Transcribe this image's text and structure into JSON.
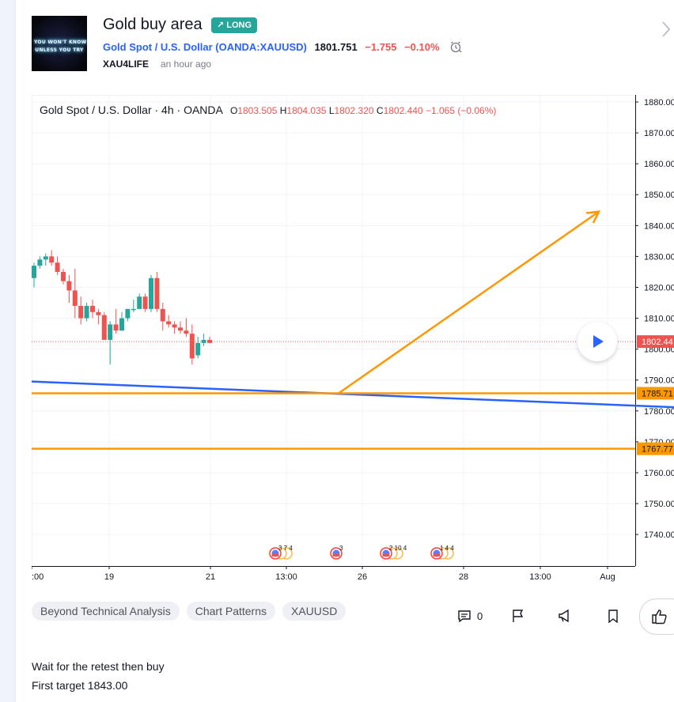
{
  "idea": {
    "title": "Gold buy area",
    "badge": "LONG",
    "symbol_name": "Gold Spot / U.S. Dollar",
    "symbol_code": "OANDA:XAUUSD",
    "price": "1801.751",
    "change": "−1.755",
    "change_pct": "−0.10%",
    "author": "XAU4LIFE",
    "time_ago": "an hour ago",
    "thumbnail_text": [
      "YOU WON'T KNOW",
      "UNLESS YOU TRY"
    ]
  },
  "chart_header": {
    "title": "Gold Spot / U.S. Dollar · 4h · OANDA",
    "o_label": "O",
    "o": "1803.505",
    "h_label": "H",
    "h": "1804.035",
    "l_label": "L",
    "l": "1802.320",
    "c_label": "C",
    "c": "1802.440",
    "change": "−1.065 (−0.06%)"
  },
  "chart_data": {
    "type": "candlestick",
    "ylim": [
      1735,
      1882
    ],
    "y_ticks": [
      1740,
      1750,
      1760,
      1770,
      1780,
      1790,
      1800,
      1810,
      1820,
      1830,
      1840,
      1850,
      1860,
      1870,
      1880
    ],
    "y_tick_labels": [
      "1740.00",
      "1750.00",
      "1760.00",
      "1770.00",
      "1780.00",
      "1790.00",
      "1800.00",
      "1810.00",
      "1820.00",
      "1830.00",
      "1840.00",
      "1850.00",
      "1860.00",
      "1870.00",
      "1880.00"
    ],
    "x_tick_labels": [
      ":00",
      "19",
      "21",
      "13:00",
      "26",
      "28",
      "13:00",
      "Aug"
    ],
    "candles": [
      {
        "o": 1823,
        "h": 1828,
        "l": 1820,
        "c": 1827
      },
      {
        "o": 1827,
        "h": 1830,
        "l": 1826,
        "c": 1829
      },
      {
        "o": 1829,
        "h": 1831,
        "l": 1827,
        "c": 1830
      },
      {
        "o": 1830,
        "h": 1832,
        "l": 1827,
        "c": 1828
      },
      {
        "o": 1828,
        "h": 1830,
        "l": 1824,
        "c": 1825
      },
      {
        "o": 1825,
        "h": 1826,
        "l": 1821,
        "c": 1822
      },
      {
        "o": 1822,
        "h": 1824,
        "l": 1815,
        "c": 1819
      },
      {
        "o": 1819,
        "h": 1826,
        "l": 1810,
        "c": 1814
      },
      {
        "o": 1814,
        "h": 1817,
        "l": 1808,
        "c": 1810
      },
      {
        "o": 1810,
        "h": 1815,
        "l": 1809,
        "c": 1814
      },
      {
        "o": 1814,
        "h": 1816,
        "l": 1810,
        "c": 1812
      },
      {
        "o": 1812,
        "h": 1813,
        "l": 1808,
        "c": 1811
      },
      {
        "o": 1811,
        "h": 1812,
        "l": 1803,
        "c": 1803
      },
      {
        "o": 1803,
        "h": 1809,
        "l": 1795,
        "c": 1808
      },
      {
        "o": 1808,
        "h": 1813,
        "l": 1805,
        "c": 1806
      },
      {
        "o": 1806,
        "h": 1812,
        "l": 1806,
        "c": 1810
      },
      {
        "o": 1810,
        "h": 1813,
        "l": 1809,
        "c": 1813
      },
      {
        "o": 1813,
        "h": 1816,
        "l": 1812,
        "c": 1813
      },
      {
        "o": 1813,
        "h": 1818,
        "l": 1813,
        "c": 1817
      },
      {
        "o": 1817,
        "h": 1818,
        "l": 1812,
        "c": 1813
      },
      {
        "o": 1813,
        "h": 1824,
        "l": 1812,
        "c": 1823
      },
      {
        "o": 1823,
        "h": 1825,
        "l": 1812,
        "c": 1813
      },
      {
        "o": 1813,
        "h": 1815,
        "l": 1806,
        "c": 1809
      },
      {
        "o": 1809,
        "h": 1811,
        "l": 1807,
        "c": 1808
      },
      {
        "o": 1808,
        "h": 1809,
        "l": 1805,
        "c": 1807
      },
      {
        "o": 1807,
        "h": 1809,
        "l": 1805,
        "c": 1806
      },
      {
        "o": 1806,
        "h": 1810,
        "l": 1804,
        "c": 1805
      },
      {
        "o": 1805,
        "h": 1808,
        "l": 1795,
        "c": 1797
      },
      {
        "o": 1798,
        "h": 1804,
        "l": 1797,
        "c": 1802
      },
      {
        "o": 1802,
        "h": 1805,
        "l": 1801,
        "c": 1803
      },
      {
        "o": 1803,
        "h": 1804,
        "l": 1802,
        "c": 1802
      }
    ],
    "last_price": 1802.44,
    "last_price_label": "1802.44",
    "horizontal_lines": [
      {
        "value": 1785.71,
        "label": "1785.71",
        "color": "#ff9800"
      },
      {
        "value": 1767.77,
        "label": "1767.77",
        "color": "#ff9800"
      }
    ],
    "trendline": {
      "from": 1789.5,
      "to": 1781.2,
      "color": "#2962ff"
    },
    "arrow": {
      "from_price": 1785.7,
      "to_price": 1844.5,
      "color": "#ff9800"
    },
    "event_groups": [
      "3 7 4",
      "3",
      "2 10 4",
      "1 4 4"
    ],
    "up_color": "#26a69a",
    "down_color": "#ef5350"
  },
  "tags": [
    "Beyond Technical Analysis",
    "Chart Patterns",
    "XAUUSD"
  ],
  "actions": {
    "comments_count": "0"
  },
  "description": [
    "Wait for the retest then buy",
    "First target 1843.00"
  ]
}
